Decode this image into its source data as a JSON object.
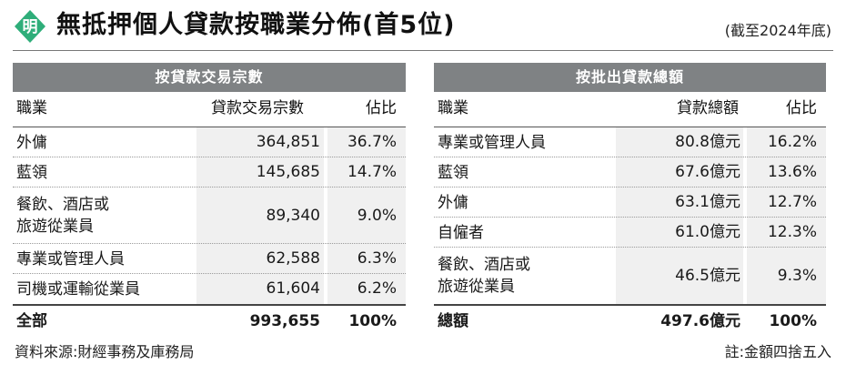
{
  "title": "無抵押個人貸款按職業分佈(首5位)",
  "as_of": "(截至2024年底)",
  "logo_icon": "ming-pao-logo",
  "colors": {
    "band": "#7f8284",
    "logo": "#2fae7a",
    "cell_bg": "#f0f0f0"
  },
  "left_table": {
    "band_label": "按貸款交易宗數",
    "columns": [
      "職業",
      "貸款交易宗數",
      "佔比"
    ],
    "rows": [
      {
        "occupation": "外傭",
        "value": "364,851",
        "share": "36.7%"
      },
      {
        "occupation": "藍領",
        "value": "145,685",
        "share": "14.7%"
      },
      {
        "occupation": "餐飲、酒店或\n旅遊從業員",
        "value": "89,340",
        "share": "9.0%"
      },
      {
        "occupation": "專業或管理人員",
        "value": "62,588",
        "share": "6.3%"
      },
      {
        "occupation": "司機或運輸從業員",
        "value": "61,604",
        "share": "6.2%"
      }
    ],
    "total": {
      "label": "全部",
      "value": "993,655",
      "share": "100%"
    }
  },
  "right_table": {
    "band_label": "按批出貸款總額",
    "columns": [
      "職業",
      "貸款總額",
      "佔比"
    ],
    "rows": [
      {
        "occupation": "專業或管理人員",
        "value": "80.8億元",
        "share": "16.2%"
      },
      {
        "occupation": "藍領",
        "value": "67.6億元",
        "share": "13.6%"
      },
      {
        "occupation": "外傭",
        "value": "63.1億元",
        "share": "12.7%"
      },
      {
        "occupation": "自僱者",
        "value": "61.0億元",
        "share": "12.3%"
      },
      {
        "occupation": "餐飲、酒店或\n旅遊從業員",
        "value": "46.5億元",
        "share": "9.3%"
      }
    ],
    "total": {
      "label": "總額",
      "value": "497.6億元",
      "share": "100%"
    }
  },
  "source": "資料來源:財經事務及庫務局",
  "note": "註:金額四捨五入"
}
